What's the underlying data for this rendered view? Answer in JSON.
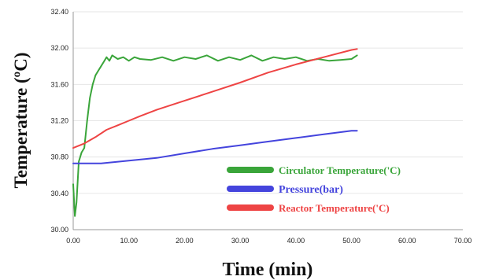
{
  "chart_data": {
    "type": "line",
    "title": "",
    "xlabel": "Time (min)",
    "ylabel": "Temperature (ºC)",
    "xlim": [
      0,
      70
    ],
    "ylim": [
      30.0,
      32.4
    ],
    "x_ticks": [
      "0.00",
      "10.00",
      "20.00",
      "30.00",
      "40.00",
      "50.00",
      "60.00",
      "70.00"
    ],
    "y_ticks": [
      "30.00",
      "30.40",
      "30.80",
      "31.20",
      "31.60",
      "32.00",
      "32.40"
    ],
    "grid": "horizontal",
    "legend_position": "lower-right",
    "series": [
      {
        "name": "Circulator Temperature('C)",
        "color": "#3aa53a",
        "x": [
          0.0,
          0.3,
          0.6,
          1.0,
          1.5,
          2.0,
          2.5,
          3.0,
          3.5,
          4.0,
          4.5,
          5.0,
          5.5,
          6.0,
          6.5,
          7.0,
          8.0,
          9.0,
          10.0,
          11.0,
          12.0,
          14.0,
          16.0,
          18.0,
          20.0,
          22.0,
          24.0,
          26.0,
          28.0,
          30.0,
          32.0,
          34.0,
          36.0,
          38.0,
          40.0,
          42.0,
          44.0,
          46.0,
          48.0,
          50.0,
          51.0
        ],
        "values": [
          30.5,
          30.15,
          30.3,
          30.75,
          30.85,
          30.9,
          31.2,
          31.45,
          31.6,
          31.7,
          31.75,
          31.8,
          31.85,
          31.9,
          31.86,
          31.92,
          31.88,
          31.9,
          31.86,
          31.9,
          31.88,
          31.87,
          31.9,
          31.86,
          31.9,
          31.88,
          31.92,
          31.86,
          31.9,
          31.87,
          31.92,
          31.86,
          31.9,
          31.88,
          31.9,
          31.86,
          31.88,
          31.86,
          31.87,
          31.88,
          31.92
        ]
      },
      {
        "name": "Pressure(bar)",
        "color": "#4444dd",
        "x": [
          0.0,
          5.0,
          10.0,
          15.0,
          20.0,
          25.0,
          30.0,
          35.0,
          40.0,
          45.0,
          50.0,
          51.0
        ],
        "values": [
          30.73,
          30.73,
          30.76,
          30.79,
          30.84,
          30.89,
          30.93,
          30.97,
          31.01,
          31.05,
          31.09,
          31.09
        ]
      },
      {
        "name": "Reactor Temperature('C)",
        "color": "#ee4444",
        "x": [
          0.0,
          2.0,
          4.0,
          6.0,
          8.0,
          10.0,
          12.0,
          15.0,
          20.0,
          25.0,
          30.0,
          35.0,
          40.0,
          45.0,
          50.0,
          51.0
        ],
        "values": [
          30.9,
          30.95,
          31.02,
          31.1,
          31.15,
          31.2,
          31.25,
          31.32,
          31.42,
          31.52,
          31.62,
          31.73,
          31.82,
          31.9,
          31.98,
          31.99
        ]
      }
    ]
  }
}
